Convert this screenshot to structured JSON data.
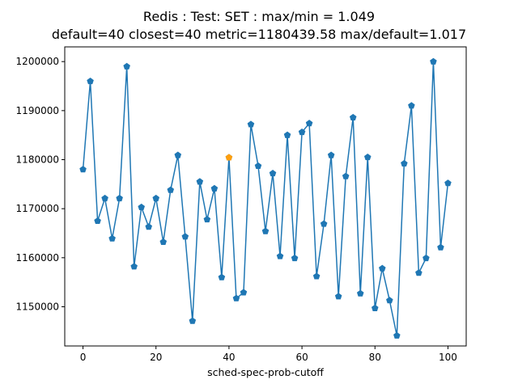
{
  "chart_data": {
    "type": "line",
    "title": "Redis : Test: SET : max/min = 1.049",
    "subtitle": "default=40 closest=40 metric=1180439.58 max/default=1.017",
    "xlabel": "sched-spec-prob-cutoff",
    "ylabel": "-",
    "xlim": [
      -5,
      105
    ],
    "ylim": [
      1142000,
      1203000
    ],
    "xticks": [
      0,
      20,
      40,
      60,
      80,
      100
    ],
    "yticks": [
      1150000,
      1160000,
      1170000,
      1180000,
      1190000,
      1200000
    ],
    "grid": false,
    "series": [
      {
        "color": "#1f77b4",
        "marker": "pentagon",
        "x": [
          0,
          2,
          4,
          6,
          8,
          10,
          12,
          14,
          16,
          18,
          20,
          22,
          24,
          26,
          28,
          30,
          32,
          34,
          36,
          38,
          40,
          42,
          44,
          46,
          48,
          50,
          52,
          54,
          56,
          58,
          60,
          62,
          64,
          66,
          68,
          70,
          72,
          74,
          76,
          78,
          80,
          82,
          84,
          86,
          88,
          90,
          92,
          94,
          96,
          98,
          100
        ],
        "values": [
          1178000,
          1196000,
          1167500,
          1172100,
          1163900,
          1172100,
          1199000,
          1158200,
          1170300,
          1166300,
          1172100,
          1163200,
          1173800,
          1180900,
          1164300,
          1147100,
          1175500,
          1167800,
          1174100,
          1156000,
          1180440,
          1151700,
          1152900,
          1187200,
          1178700,
          1165400,
          1177200,
          1160300,
          1185000,
          1159900,
          1185600,
          1187400,
          1156200,
          1166900,
          1180900,
          1152100,
          1176600,
          1188600,
          1152700,
          1180500,
          1149700,
          1157800,
          1151300,
          1144100,
          1179200,
          1191000,
          1156900,
          1159900,
          1200000,
          1162100,
          1175200
        ]
      }
    ],
    "highlight": {
      "x": 40,
      "y": 1180440,
      "color": "#ff9f0e"
    }
  }
}
